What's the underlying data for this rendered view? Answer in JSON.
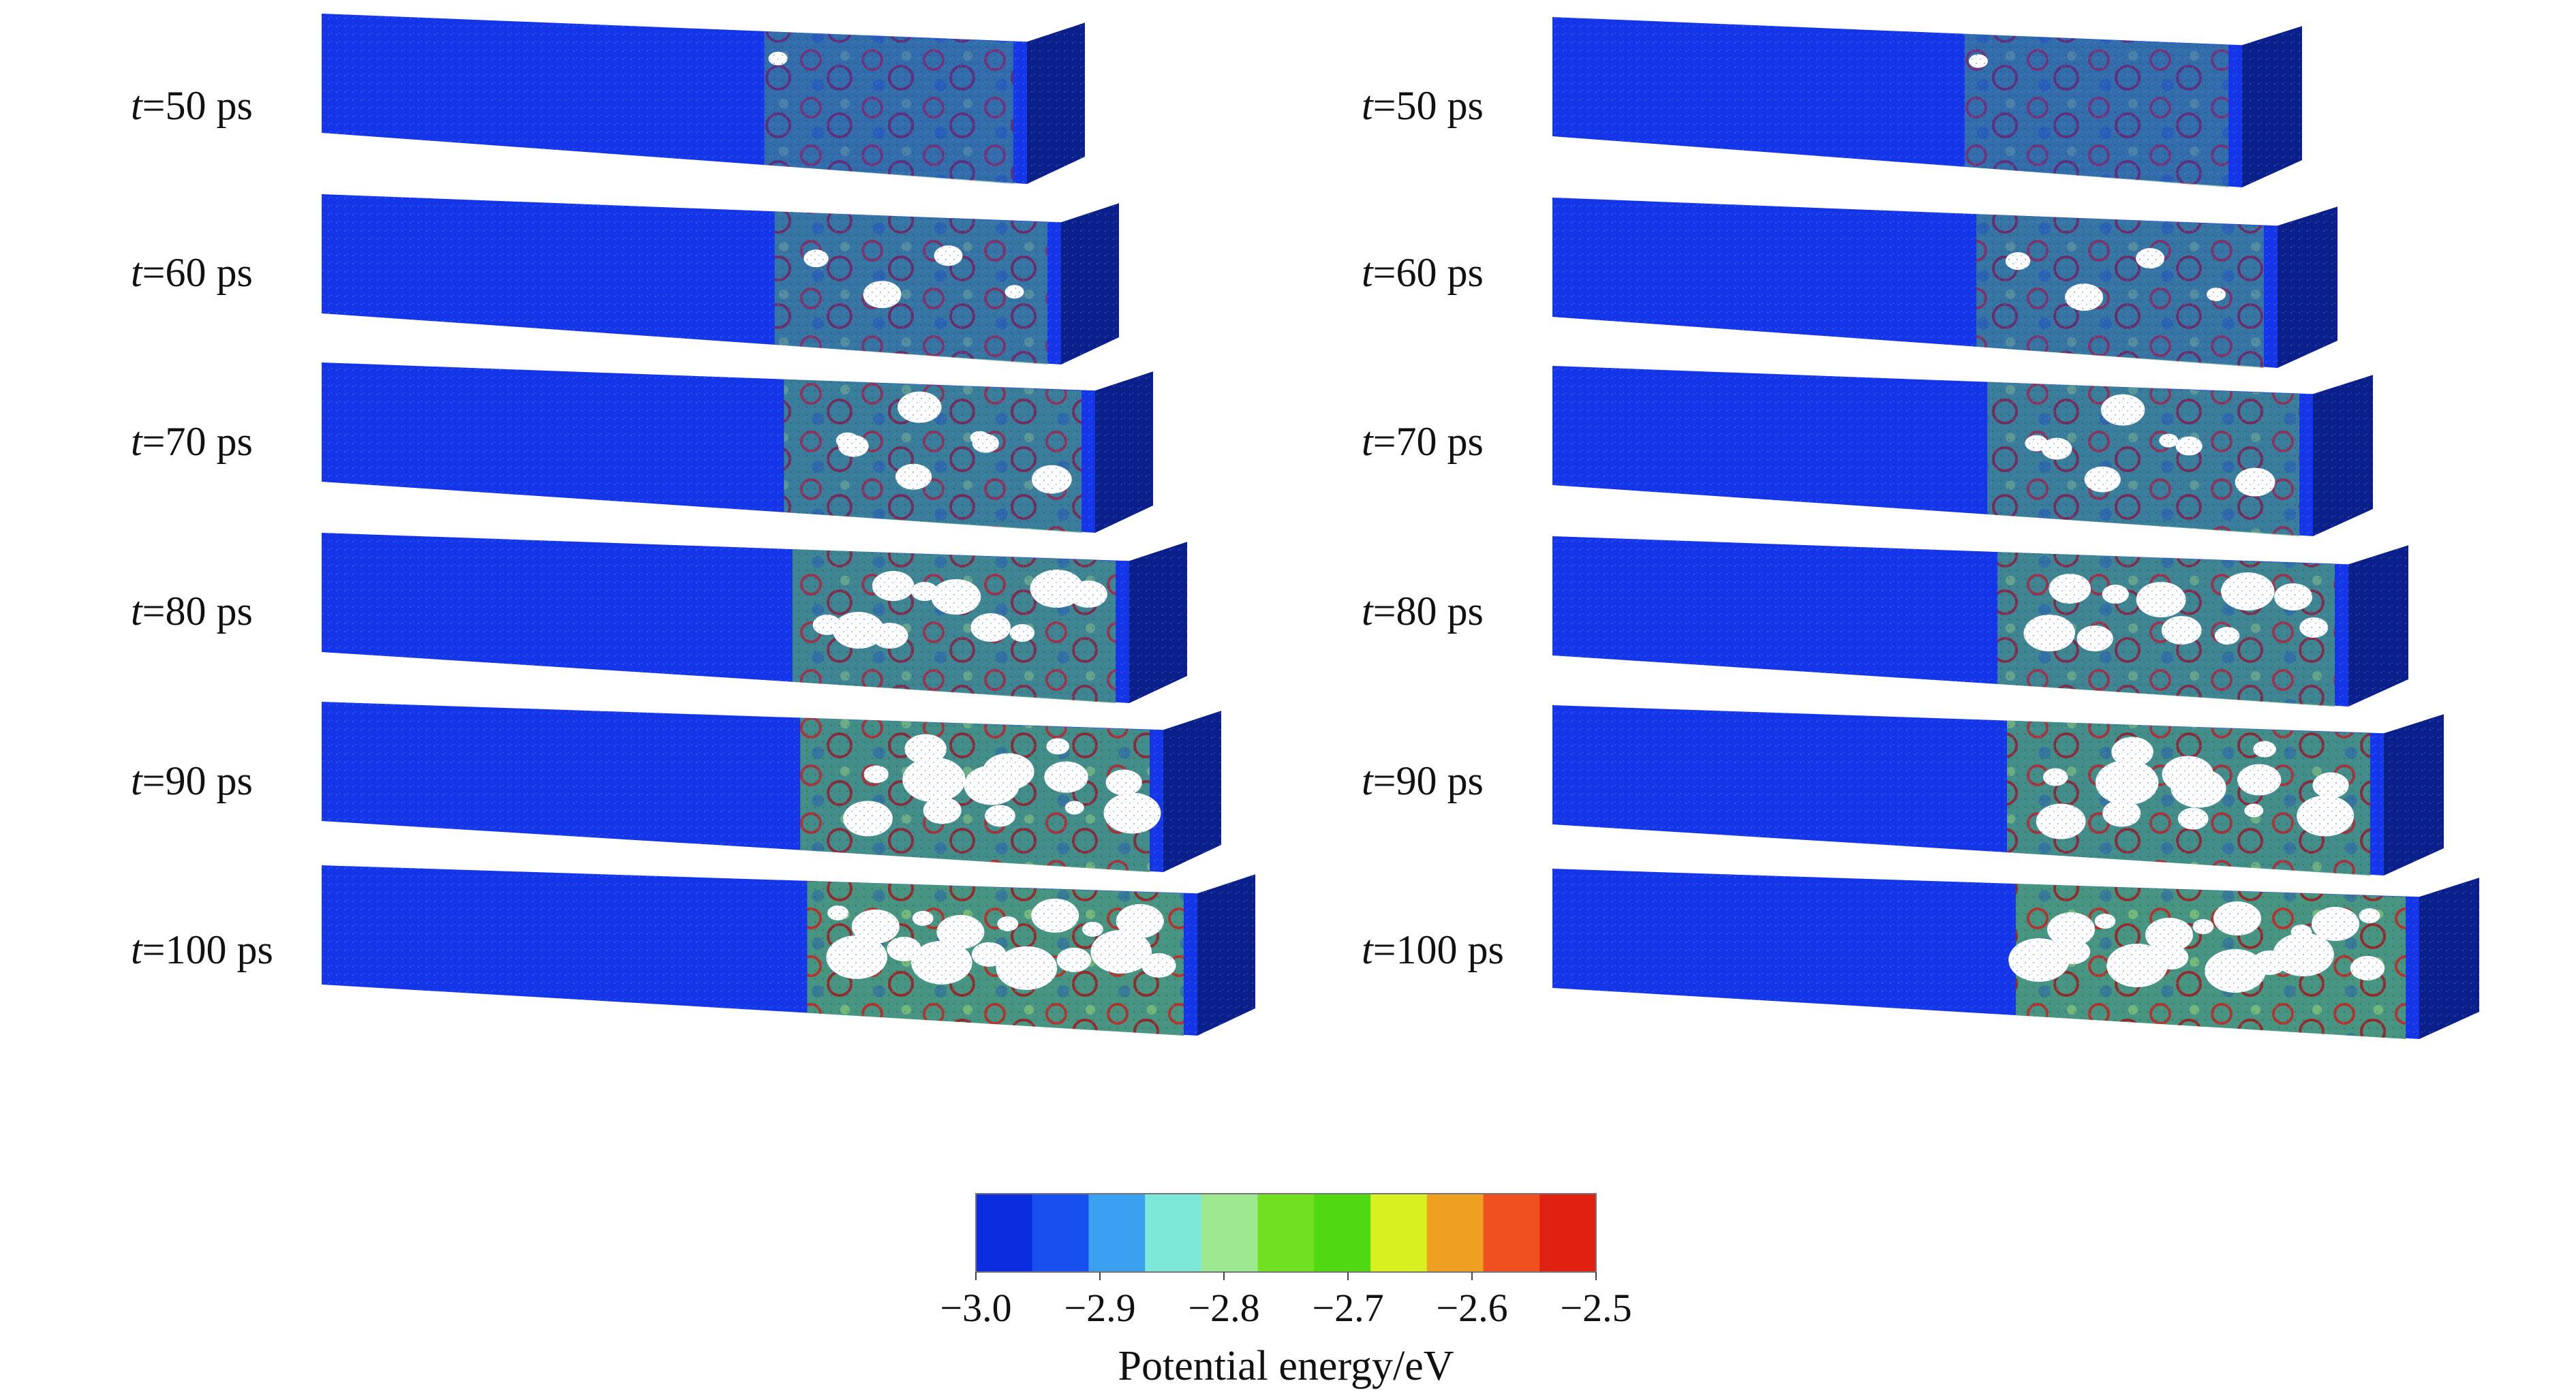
{
  "panels": [
    {
      "name": "left",
      "snapshots": [
        {
          "label": "=50 ps"
        },
        {
          "label": "=60 ps"
        },
        {
          "label": "=70 ps"
        },
        {
          "label": "=80 ps"
        },
        {
          "label": "=90 ps"
        },
        {
          "label": "=100 ps"
        }
      ]
    },
    {
      "name": "right",
      "snapshots": [
        {
          "label": "=50 ps"
        },
        {
          "label": "=60 ps"
        },
        {
          "label": "=70 ps"
        },
        {
          "label": "=80 ps"
        },
        {
          "label": "=90 ps"
        },
        {
          "label": "=100 ps"
        }
      ]
    }
  ],
  "time_symbol": "t",
  "colorbar": {
    "title": "Potential energy/eV",
    "min": -3.0,
    "max": -2.5,
    "tick_labels": [
      "−3.0",
      "−2.9",
      "−2.8",
      "−2.7",
      "−2.6",
      "−2.5"
    ],
    "colors": [
      "#0a2de0",
      "#1850f0",
      "#3ca0f0",
      "#7ee8d8",
      "#9ee890",
      "#70e020",
      "#50d810",
      "#d8f020",
      "#f0a020",
      "#f05020",
      "#e02010"
    ]
  },
  "colors": {
    "bulk_blue": "#1436e8",
    "dark_end_blue": "#0a1f8a",
    "foam_green": "#4fa878",
    "edge_red": "#c83a22",
    "void_white": "#ffffff"
  }
}
